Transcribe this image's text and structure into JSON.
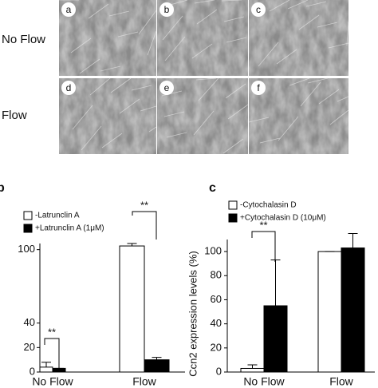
{
  "image_panels": {
    "labels": [
      "a",
      "b",
      "c",
      "d",
      "e",
      "f"
    ],
    "row_labels": [
      "No Flow",
      "Flow"
    ]
  },
  "chart_data": [
    {
      "type": "bar",
      "title": "b",
      "categories": [
        "No Flow",
        "Flow"
      ],
      "series": [
        {
          "name": "-Latrunclin A",
          "color": "#ffffff",
          "values": [
            4,
            103
          ],
          "errors": [
            4,
            2
          ]
        },
        {
          "name": "+Latrunclin A (1μM)",
          "color": "#000000",
          "values": [
            3,
            10
          ],
          "errors": [
            0,
            2
          ]
        }
      ],
      "ylim": [
        0,
        105
      ],
      "yticks": [
        0,
        20,
        40,
        100
      ],
      "annotations": [
        {
          "text": "**"
        },
        {
          "text": "**"
        }
      ]
    },
    {
      "type": "bar",
      "title": "c",
      "ylabel": "Ccn2 expression levels (%)",
      "categories": [
        "No Flow",
        "Flow"
      ],
      "series": [
        {
          "name": "-Cytochalasin D",
          "color": "#ffffff",
          "values": [
            3,
            100
          ],
          "errors": [
            3,
            0
          ]
        },
        {
          "name": "+Cytochalasin D (10μM)",
          "color": "#000000",
          "values": [
            55,
            103
          ],
          "errors": [
            38,
            12
          ]
        }
      ],
      "ylim": [
        0,
        110
      ],
      "yticks": [
        0,
        20,
        40,
        60,
        80,
        100
      ],
      "annotations": [
        {
          "text": "**"
        }
      ]
    }
  ]
}
